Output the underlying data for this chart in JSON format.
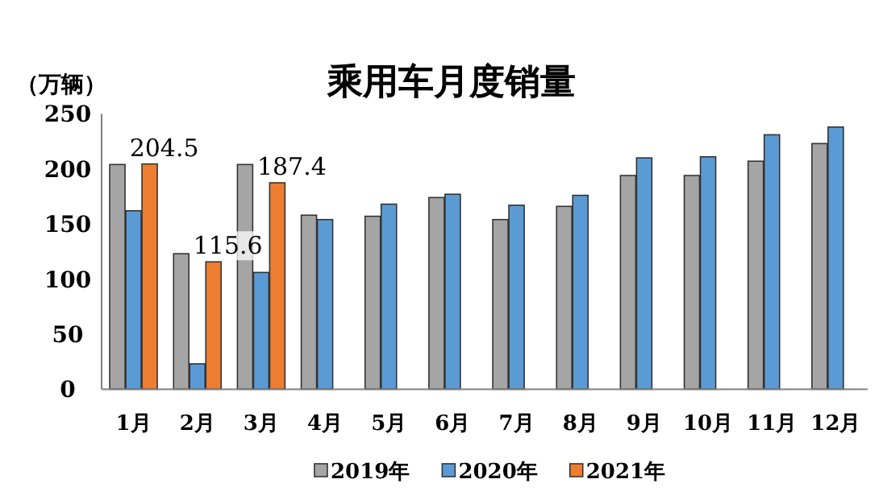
{
  "chart_data": {
    "type": "bar",
    "title": "乘用车月度销量",
    "ylabel": "（万辆）",
    "categories": [
      "1月",
      "2月",
      "3月",
      "4月",
      "5月",
      "6月",
      "7月",
      "8月",
      "9月",
      "10月",
      "11月",
      "12月"
    ],
    "series": [
      {
        "name": "2019年",
        "color": "#a5a5a5",
        "values": [
          204,
          123,
          204,
          158,
          157,
          174,
          154,
          166,
          194,
          194,
          207,
          223
        ]
      },
      {
        "name": "2020年",
        "color": "#5b9bd5",
        "values": [
          162,
          23,
          106,
          154,
          168,
          177,
          167,
          176,
          210,
          211,
          231,
          238
        ]
      },
      {
        "name": "2021年",
        "color": "#ed7d31",
        "values": [
          204.5,
          115.6,
          187.4,
          null,
          null,
          null,
          null,
          null,
          null,
          null,
          null,
          null
        ],
        "value_labels": [
          "204.5",
          "115.6",
          "187.4",
          null,
          null,
          null,
          null,
          null,
          null,
          null,
          null,
          null
        ]
      }
    ],
    "ylim": [
      0,
      250
    ],
    "yticks": [
      0,
      50,
      100,
      150,
      200,
      250
    ],
    "grid": false,
    "legend": "bottom"
  }
}
